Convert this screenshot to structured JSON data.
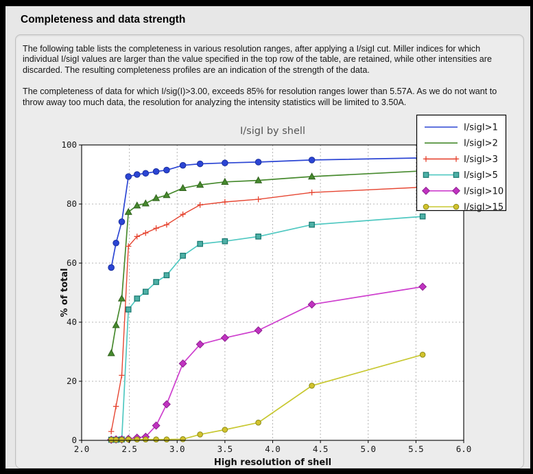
{
  "window": {
    "title": "Completeness and data strength"
  },
  "body_text": {
    "paragraph1": "The following table lists the completeness in various resolution ranges, after applying a I/sigI cut. Miller indices for which individual I/sigI values are larger than the value specified in the top row of the table, are retained, while other intensities are discarded. The resulting completeness profiles are an indication of the strength of the data.",
    "paragraph2": "The completeness of data for which I/sig(I)>3.00, exceeds  85% for resolution ranges lower than 5.57A. As we do not want to throw away too much data, the resolution for analyzing the intensity statistics will be limited to 3.50A."
  },
  "chart_data": {
    "type": "line",
    "title": "I/sigI by shell",
    "xlabel": "High resolution of shell",
    "ylabel": "% of total",
    "xlim": [
      2.0,
      6.0
    ],
    "ylim": [
      0,
      100
    ],
    "x_ticks": [
      2.0,
      2.5,
      3.0,
      3.5,
      4.0,
      4.5,
      5.0,
      5.5,
      6.0
    ],
    "x_tick_labels": [
      "2.0",
      "2.5",
      "3.0",
      "3.5",
      "4.0",
      "4.5",
      "5.0",
      "5.5",
      "6.0"
    ],
    "y_ticks": [
      0,
      20,
      40,
      60,
      80,
      100
    ],
    "y_tick_labels": [
      "0",
      "20",
      "40",
      "60",
      "80",
      "100"
    ],
    "grid": "dashed",
    "legend_position": "upper right",
    "x": [
      2.31,
      2.36,
      2.42,
      2.49,
      2.58,
      2.67,
      2.78,
      2.89,
      3.06,
      3.24,
      3.5,
      3.85,
      4.41,
      5.57
    ],
    "series": [
      {
        "name": "I/sigI>1",
        "color": "#2b45d4",
        "edge": "#1b2f9f",
        "marker": "circle",
        "legend_marker": false,
        "values": [
          58.5,
          66.8,
          74.0,
          89.3,
          90.0,
          90.4,
          91.0,
          91.5,
          93.1,
          93.6,
          93.9,
          94.2,
          94.9,
          95.6
        ]
      },
      {
        "name": "I/sigI>2",
        "color": "#478a2e",
        "edge": "#2f611c",
        "marker": "triangle",
        "legend_marker": false,
        "values": [
          29.5,
          39.0,
          48.0,
          77.3,
          79.5,
          80.2,
          82.0,
          83.0,
          85.4,
          86.5,
          87.5,
          88.0,
          89.3,
          91.2
        ]
      },
      {
        "name": "I/sigI>3",
        "color": "#e64531",
        "edge": "#e64531",
        "marker": "plus",
        "legend_marker": true,
        "values": [
          3.0,
          11.5,
          22.0,
          65.7,
          69.0,
          70.2,
          71.8,
          73.0,
          76.5,
          79.7,
          80.7,
          81.6,
          83.9,
          85.7
        ]
      },
      {
        "name": "I/sigI>5",
        "color": "#4fc8c1",
        "edge": "#17766e",
        "marker": "square",
        "marker_fill": "#4db0a6",
        "legend_marker": true,
        "values": [
          0.2,
          0.2,
          0.3,
          44.3,
          48.0,
          50.3,
          53.6,
          55.9,
          62.5,
          66.5,
          67.4,
          69.0,
          73.0,
          75.8
        ]
      },
      {
        "name": "I/sigI>10",
        "color": "#ce3fce",
        "edge": "#8e2090",
        "marker": "diamond",
        "marker_fill": "#c032c0",
        "legend_marker": true,
        "values": [
          0.2,
          0.3,
          0.3,
          0.5,
          0.9,
          1.2,
          5.0,
          12.2,
          26.0,
          32.5,
          34.7,
          37.2,
          46.0,
          52.0
        ]
      },
      {
        "name": "I/sigI>15",
        "color": "#c8c831",
        "edge": "#8c8c18",
        "marker": "circle-small",
        "marker_fill": "#d2c22d",
        "legend_marker": true,
        "values": [
          0.2,
          0.2,
          0.2,
          0.3,
          0.3,
          0.3,
          0.3,
          0.3,
          0.4,
          2.0,
          3.6,
          6.0,
          18.5,
          29.0
        ]
      }
    ]
  }
}
